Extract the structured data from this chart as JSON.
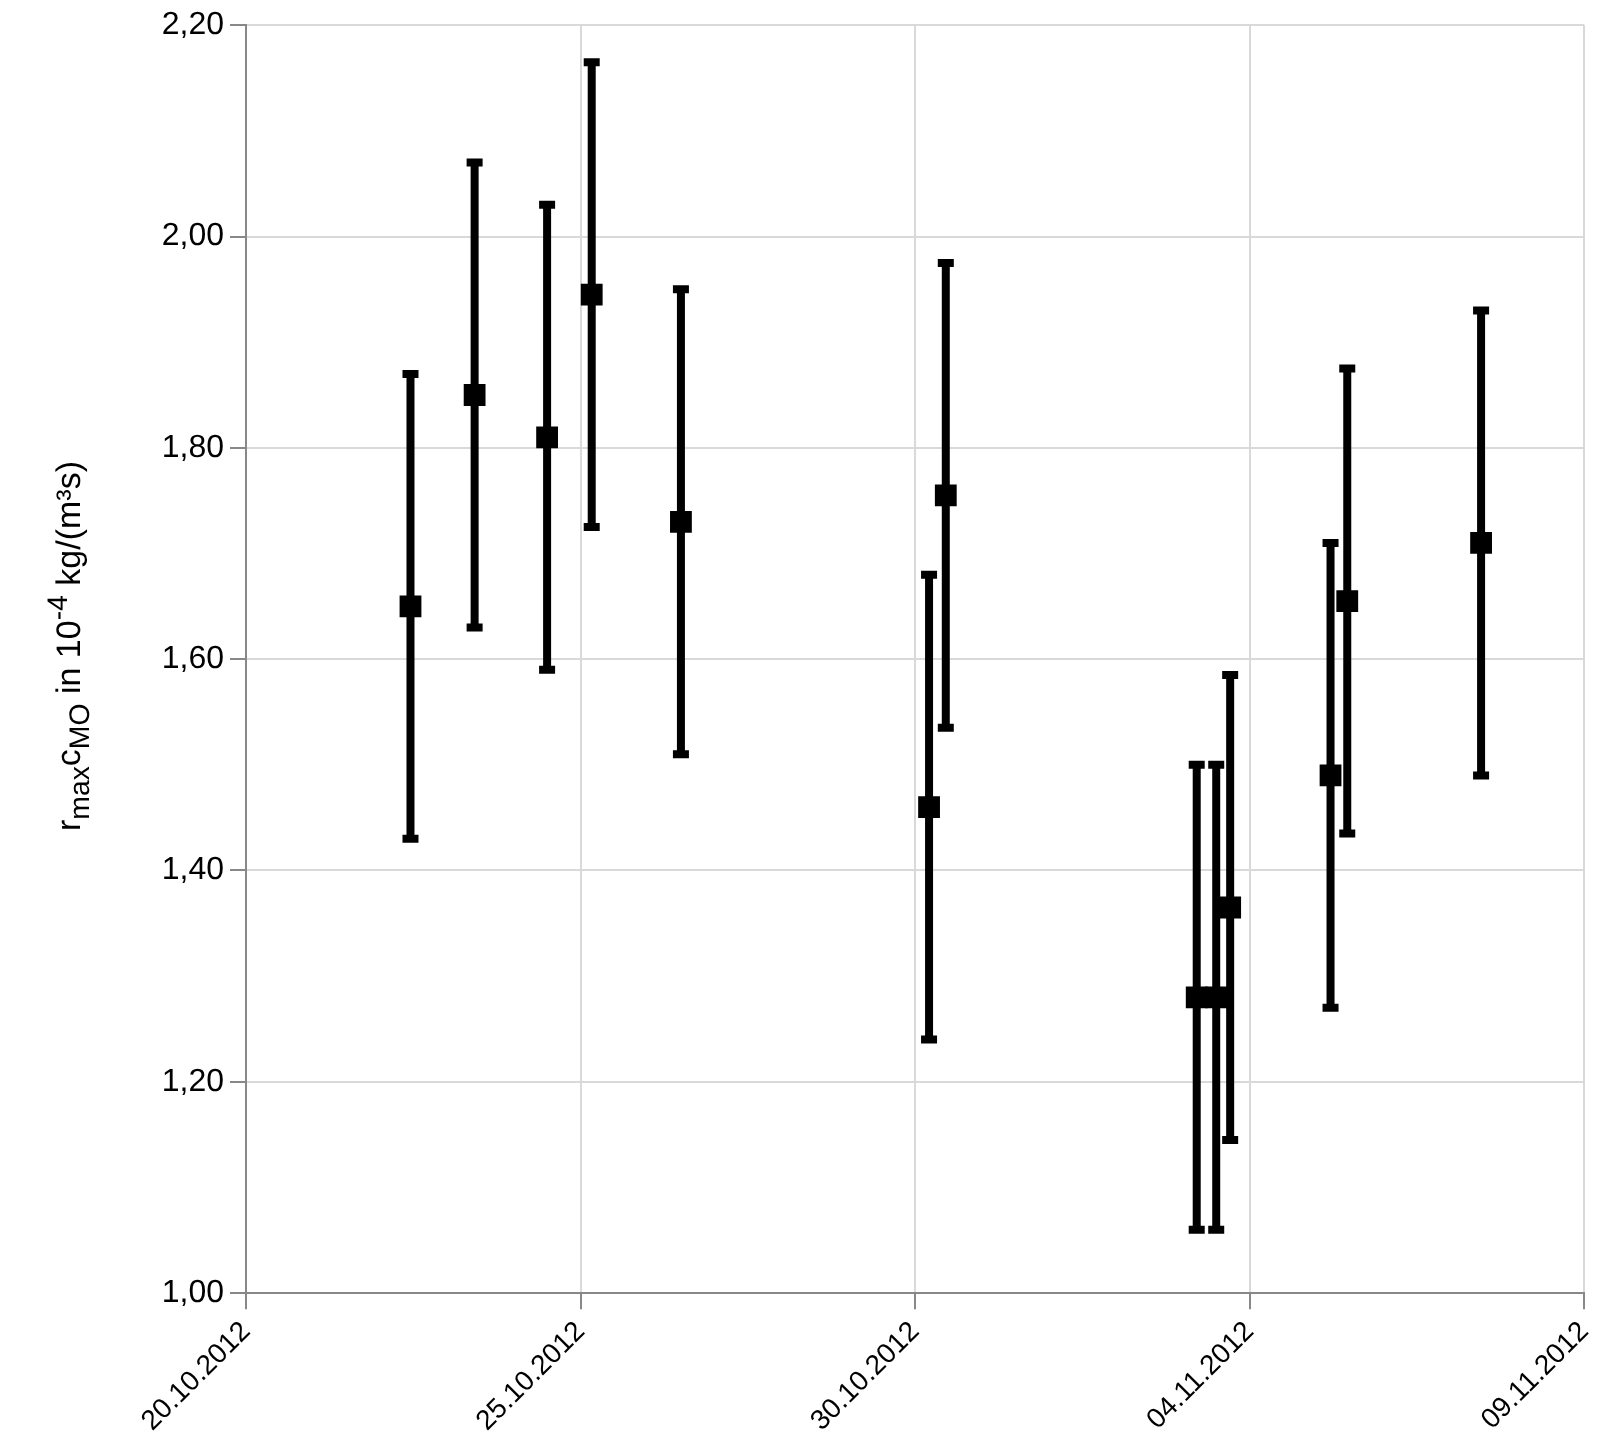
{
  "chart_data": {
    "type": "scatter",
    "ylabel": "r$_{max}$c$_{MO}$ in 10$^{-4}$ kg/(m³s)",
    "x": [
      "2012-10-22T11:00",
      "2012-10-23T10:00",
      "2012-10-24T12:00",
      "2012-10-25T04:00",
      "2012-10-26T12:00",
      "2012-10-30T05:00",
      "2012-10-30T11:00",
      "2012-11-03T05:00",
      "2012-11-03T12:00",
      "2012-11-03T17:00",
      "2012-11-05T05:00",
      "2012-11-05T11:00",
      "2012-11-07T11:00"
    ],
    "series": [
      {
        "color": "#000000",
        "values": [
          1.65,
          1.85,
          1.81,
          1.945,
          1.73,
          1.46,
          1.755,
          1.28,
          1.28,
          1.365,
          1.49,
          1.655,
          1.71
        ],
        "errors": [
          0.22,
          0.22,
          0.22,
          0.22,
          0.22,
          0.22,
          0.22,
          0.22,
          0.22,
          0.22,
          0.22,
          0.22,
          0.22
        ]
      }
    ],
    "xlim": [
      "2012-10-20",
      "2012-11-09"
    ],
    "xticks": [
      {
        "value": "2012-10-20",
        "label": "20.10.2012"
      },
      {
        "value": "2012-10-25",
        "label": "25.10.2012"
      },
      {
        "value": "2012-10-30",
        "label": "30.10.2012"
      },
      {
        "value": "2012-11-04",
        "label": "04.11.2012"
      },
      {
        "value": "2012-11-09",
        "label": "09.11.2012"
      }
    ],
    "ylim": [
      1,
      2.2
    ],
    "yticks": [
      {
        "value": 1,
        "label": "1,00"
      },
      {
        "value": 1.2,
        "label": "1,20"
      },
      {
        "value": 1.4,
        "label": "1,40"
      },
      {
        "value": 1.6,
        "label": "1,60"
      },
      {
        "value": 1.8,
        "label": "1,80"
      },
      {
        "value": 2,
        "label": "2,00"
      },
      {
        "value": 2.2,
        "label": "2,20"
      }
    ],
    "grid": true,
    "marker": "square",
    "legend": false
  }
}
